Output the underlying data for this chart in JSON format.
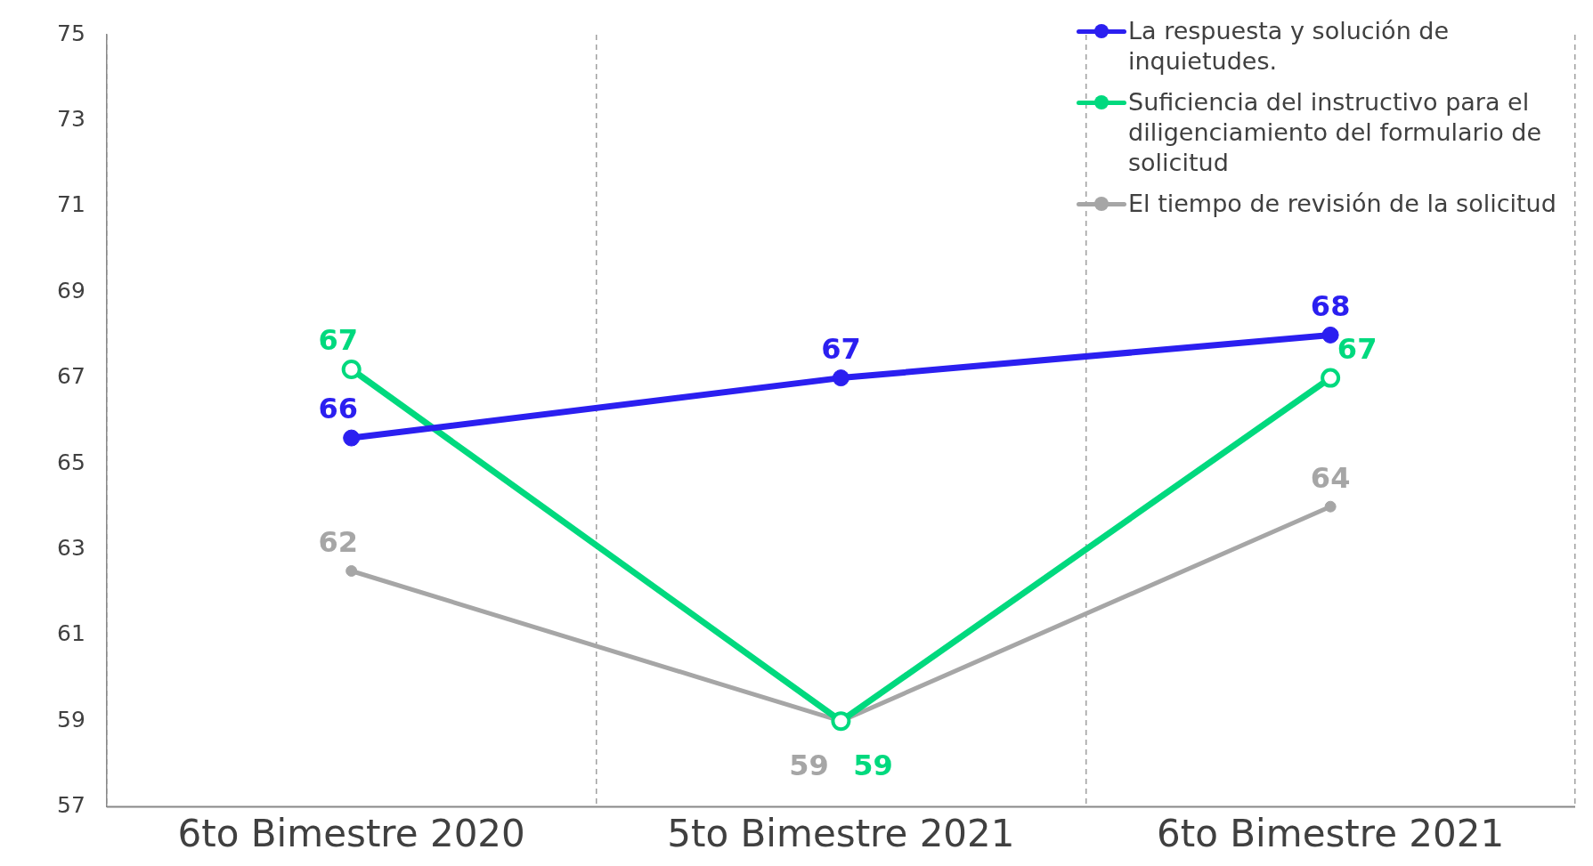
{
  "chart_data": {
    "type": "line",
    "categories": [
      "6to Bimestre 2020",
      "5to Bimestre 2021",
      "6to Bimestre 2021"
    ],
    "series": [
      {
        "name": "La respuesta y solución de inquietudes.",
        "color": "#2b1ff0",
        "values": [
          65.6,
          67,
          68
        ],
        "value_labels": [
          "66",
          "67",
          "68"
        ]
      },
      {
        "name": "Suficiencia del instructivo para el diligenciamiento del formulario de solicitud",
        "color": "#00d97e",
        "values": [
          67.2,
          59,
          67
        ],
        "value_labels": [
          "67",
          "59",
          "67"
        ]
      },
      {
        "name": "El tiempo de revisión de la solicitud",
        "color": "#a6a6a6",
        "values": [
          62.5,
          59,
          64
        ],
        "value_labels": [
          "62",
          "59",
          "64"
        ]
      }
    ],
    "ylim": [
      57,
      75
    ],
    "yticks": [
      57,
      59,
      61,
      63,
      65,
      67,
      69,
      71,
      73,
      75
    ],
    "grid": "x",
    "legend": "top right",
    "marker": "circle",
    "line_style": "solid"
  }
}
